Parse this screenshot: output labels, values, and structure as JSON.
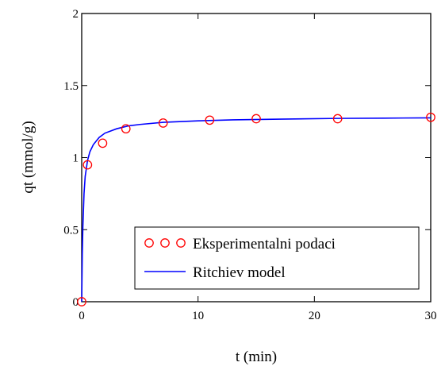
{
  "chart_data": {
    "type": "scatter",
    "xlabel": "t (min)",
    "ylabel": "qt (mmol/g)",
    "xlim": [
      0,
      30
    ],
    "ylim": [
      0,
      2
    ],
    "x_ticks": [
      0,
      10,
      20,
      30
    ],
    "y_ticks": [
      0,
      0.5,
      1,
      1.5,
      2
    ],
    "x_tick_labels": [
      "0",
      "10",
      "20",
      "30"
    ],
    "y_tick_labels": [
      "0",
      "0.5",
      "1",
      "1.5",
      "2"
    ],
    "grid": false,
    "legend_position": "bottom-right",
    "series": [
      {
        "name": "Eksperimentalni podaci",
        "kind": "markers",
        "marker": "open-circle",
        "color": "#ff0000",
        "x": [
          0,
          0.5,
          1.8,
          3.8,
          7,
          11,
          15,
          22,
          30
        ],
        "y": [
          0,
          0.95,
          1.1,
          1.2,
          1.24,
          1.26,
          1.27,
          1.27,
          1.28
        ]
      },
      {
        "name": "Ritchiev model",
        "kind": "line",
        "color": "#0000ff",
        "x": [
          0,
          0.05,
          0.1,
          0.2,
          0.3,
          0.5,
          0.7,
          1,
          1.5,
          2,
          3,
          4,
          5,
          7,
          10,
          13,
          17,
          22,
          26,
          30
        ],
        "y": [
          0,
          0.33,
          0.52,
          0.75,
          0.87,
          0.98,
          1.04,
          1.09,
          1.14,
          1.17,
          1.2,
          1.22,
          1.23,
          1.245,
          1.255,
          1.262,
          1.267,
          1.272,
          1.274,
          1.276
        ]
      }
    ]
  }
}
